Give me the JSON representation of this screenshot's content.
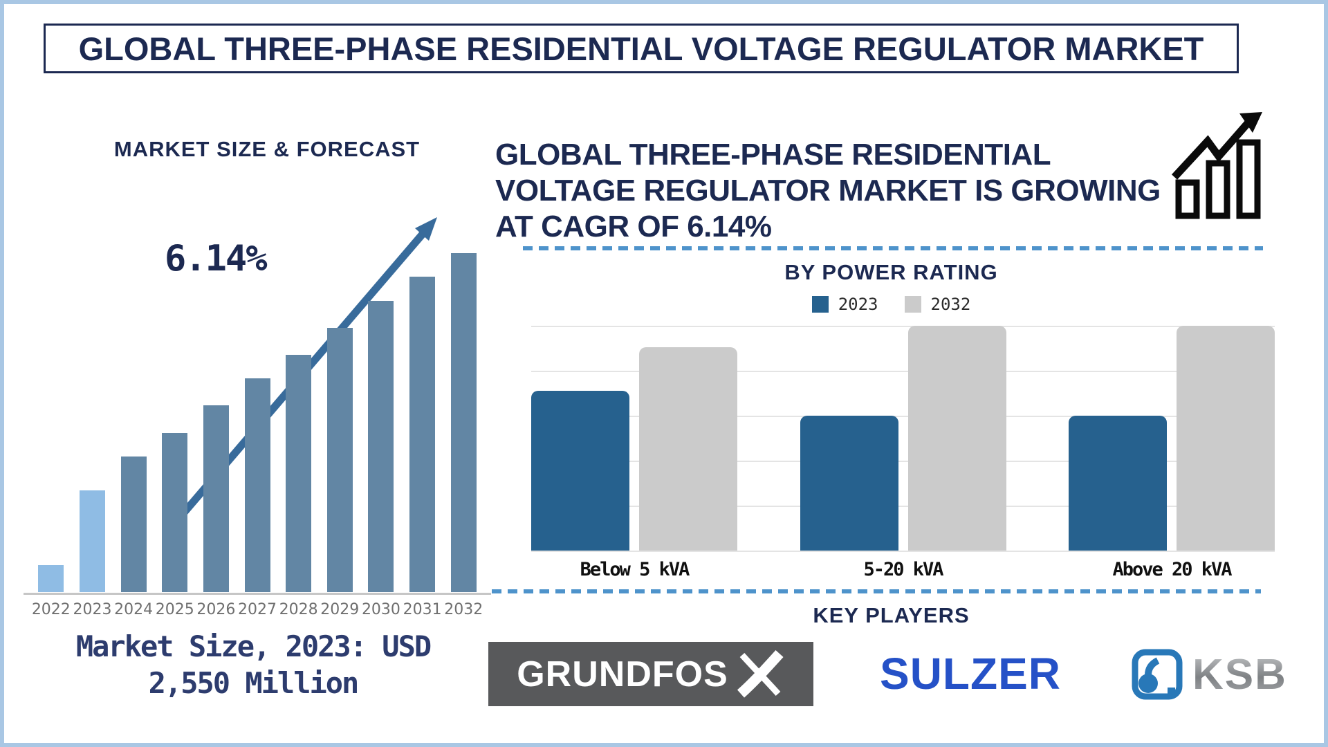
{
  "title": "GLOBAL THREE-PHASE RESIDENTIAL VOLTAGE REGULATOR MARKET",
  "colors": {
    "navy": "#1C2951",
    "caption_navy": "#2D3C6E",
    "frame_border": "#A9C7E4",
    "divider_blue": "#4E93CB",
    "forecast_bar_highlight": "#8FBCE4",
    "forecast_bar_default": "#6286A4",
    "trend_arrow": "#386B9B",
    "power_bar_2023": "#26618E",
    "power_bar_2032": "#CBCBCB",
    "grundfos_bg": "#58595B",
    "sulzer_blue": "#2551C7",
    "ksb_blue": "#2878B8"
  },
  "left_panel": {
    "chart_title": "MARKET SIZE & FORECAST",
    "cagr_label": "6.14%",
    "caption_line1": "Market Size, 2023: USD",
    "caption_line2": "2,550 Million"
  },
  "right_panel": {
    "headline_lines": [
      "GLOBAL THREE-PHASE RESIDENTIAL",
      "VOLTAGE REGULATOR MARKET IS GROWING",
      "AT CAGR OF 6.14%"
    ],
    "section2_title": "BY POWER RATING",
    "key_players_title": "KEY PLAYERS",
    "logos": [
      "GRUNDFOS",
      "SULZER",
      "KSB"
    ]
  },
  "chart_data": [
    {
      "id": "market-size-forecast",
      "type": "bar",
      "title": "MARKET SIZE & FORECAST",
      "categories": [
        "2022",
        "2023",
        "2024",
        "2025",
        "2026",
        "2027",
        "2028",
        "2029",
        "2030",
        "2031",
        "2032"
      ],
      "values_relative": [
        0.08,
        0.3,
        0.4,
        0.47,
        0.55,
        0.63,
        0.7,
        0.78,
        0.86,
        0.93,
        1.0
      ],
      "highlight_categories": [
        "2022",
        "2023"
      ],
      "annotations": {
        "cagr": "6.14%",
        "market_size_2023": "USD 2,550 Million"
      },
      "colors": {
        "highlight": "#8FBCE4",
        "default": "#6286A4",
        "arrow": "#386B9B"
      },
      "xlabel": "",
      "ylabel": "",
      "grid": false,
      "legend_position": "none"
    },
    {
      "id": "by-power-rating",
      "type": "grouped-bar",
      "title": "BY POWER RATING",
      "categories": [
        "Below 5 kVA",
        "5-20 kVA",
        "Above 20 kVA"
      ],
      "series": [
        {
          "name": "2023",
          "color": "#26618E",
          "values_relative": [
            0.71,
            0.6,
            0.6
          ]
        },
        {
          "name": "2032",
          "color": "#CBCBCB",
          "values_relative": [
            0.905,
            1.0,
            1.0
          ]
        }
      ],
      "xlabel": "",
      "ylabel": "",
      "grid": true,
      "legend_position": "top"
    }
  ]
}
